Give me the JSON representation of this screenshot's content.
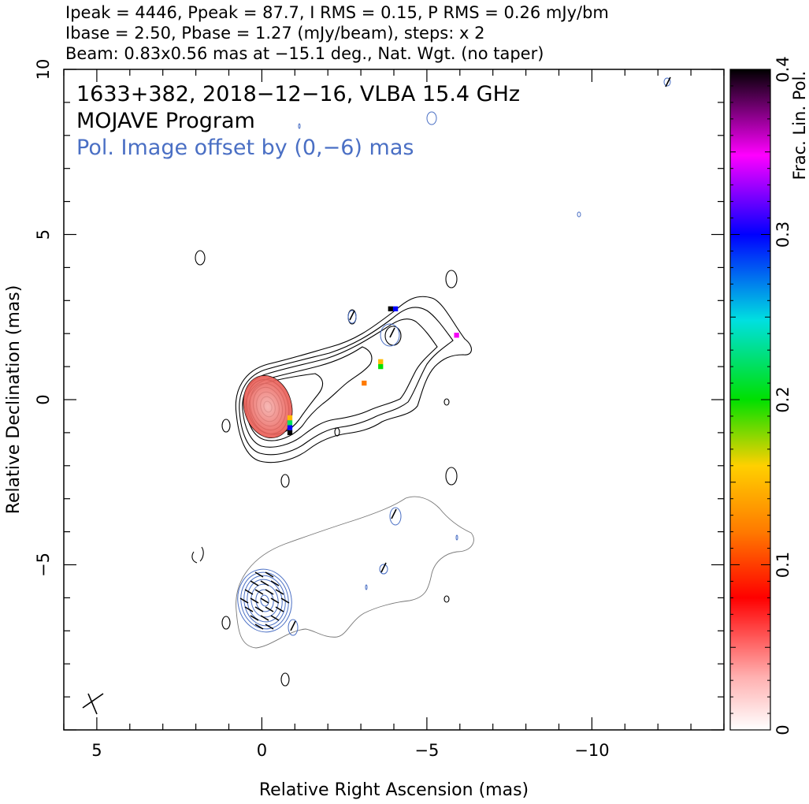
{
  "header": {
    "line1": "Ipeak = 4446, Ppeak = 87.7, I RMS = 0.15, P RMS = 0.26 mJy/bm",
    "line2": "Ibase = 2.50, Pbase = 1.27 (mJy/beam), steps: x 2",
    "line3": "Beam: 0.83x0.56 mas at −15.1 deg., Nat. Wgt. (no taper)"
  },
  "annotations": {
    "source": "1633+382, 2018−12−16, VLBA 15.4 GHz",
    "program": "MOJAVE Program",
    "offset_note": "Pol. Image offset by (0,−6) mas"
  },
  "colors": {
    "total_intensity_contour": "#000000",
    "pol_contour": "#4a6fc4",
    "core_fill": "#e8524a",
    "offset_note_text": "#4a6fc4"
  },
  "colorbar": {
    "label": "Frac. Lin. Pol.",
    "min": 0,
    "max": 0.4,
    "ticks": [
      "0",
      "0.1",
      "0.2",
      "0.3",
      "0.4"
    ]
  },
  "chart_data": {
    "type": "heatmap",
    "xlabel": "Relative Right Ascension (mas)",
    "ylabel": "Relative Declination (mas)",
    "xlim": [
      6,
      -14
    ],
    "ylim": [
      -10,
      10
    ],
    "x_ticks": [
      "5",
      "0",
      "−5",
      "−10"
    ],
    "y_ticks": [
      "10",
      "5",
      "0",
      "−5"
    ],
    "core_position": [
      0,
      0
    ],
    "pol_image_offset_mas": [
      0,
      -6
    ],
    "beam": {
      "major_mas": 0.83,
      "minor_mas": 0.56,
      "pa_deg": -15.1
    },
    "frac_pol_pixels": [
      {
        "x": -0.85,
        "y": -0.7,
        "frac_pol": 0.22
      },
      {
        "x": -0.85,
        "y": -0.85,
        "frac_pol": 0.3
      },
      {
        "x": -0.85,
        "y": -1.0,
        "frac_pol": 0.4
      },
      {
        "x": -0.85,
        "y": -0.55,
        "frac_pol": 0.15
      },
      {
        "x": -3.6,
        "y": 1.0,
        "frac_pol": 0.2
      },
      {
        "x": -3.6,
        "y": 1.15,
        "frac_pol": 0.15
      },
      {
        "x": -3.1,
        "y": 0.5,
        "frac_pol": 0.12
      },
      {
        "x": -3.9,
        "y": 2.75,
        "frac_pol": 0.4
      },
      {
        "x": -4.05,
        "y": 2.75,
        "frac_pol": 0.3
      },
      {
        "x": -5.9,
        "y": 1.95,
        "frac_pol": 0.35
      }
    ]
  }
}
